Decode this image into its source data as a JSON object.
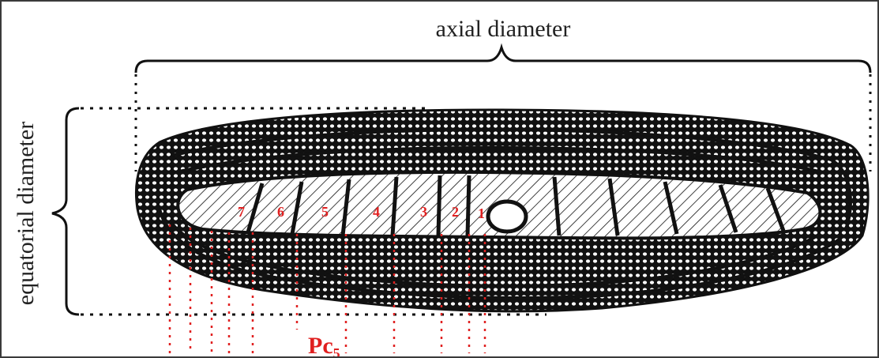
{
  "figure": {
    "axial_label": "axial diameter",
    "equatorial_label": "equatorial diameter",
    "pc_label": {
      "main": "Pc",
      "sub": "5"
    },
    "chamber_numbers": [
      "1",
      "2",
      "3",
      "4",
      "5",
      "6",
      "7"
    ],
    "colors": {
      "ink": "#111111",
      "annotation": "#e02020",
      "bracket": "#111111",
      "text": "#222222"
    }
  }
}
